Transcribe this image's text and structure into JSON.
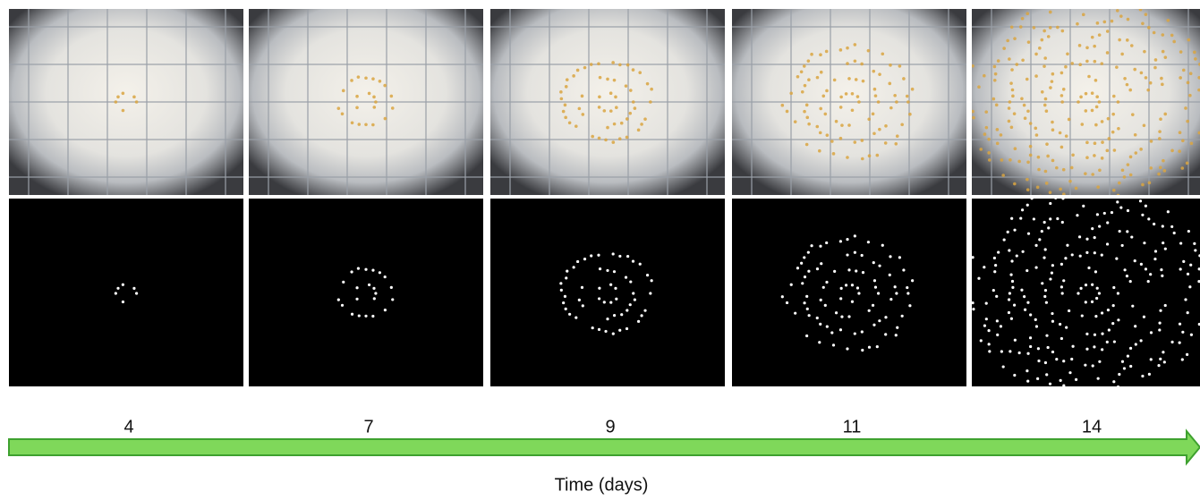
{
  "time_points": [
    4,
    7,
    9,
    11,
    14
  ],
  "axis_label": "Time (days)"
}
